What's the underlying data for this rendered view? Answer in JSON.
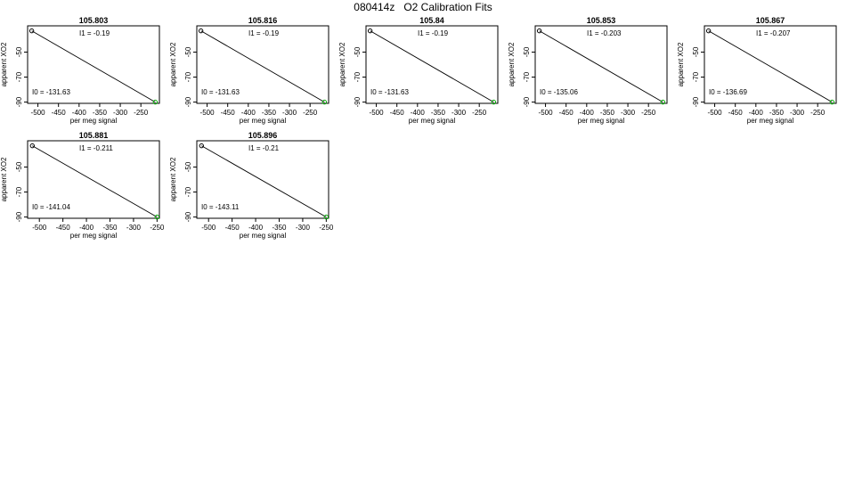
{
  "title": "080414z   O2 Calibration Fits",
  "chart_data": [
    {
      "type": "scatter",
      "title": "105.803",
      "xlabel": "per meg signal",
      "ylabel": "apparent XO2",
      "xlim": [
        -525,
        -205
      ],
      "ylim": [
        -91,
        -29
      ],
      "xticks": [
        -500,
        -450,
        -400,
        -350,
        -300,
        -250
      ],
      "yticks": [
        -50,
        -70,
        -90
      ],
      "points": [
        {
          "x": -515,
          "y": -33,
          "color": "#000000"
        },
        {
          "x": -215,
          "y": -90,
          "color": "#00aa00"
        }
      ],
      "fit_line": [
        [
          -515,
          -33
        ],
        [
          -215,
          -90
        ]
      ],
      "annotations": {
        "i1": "I1 =  -0.19",
        "i0": "I0 =  -131.63"
      }
    },
    {
      "type": "scatter",
      "title": "105.816",
      "xlabel": "per meg signal",
      "ylabel": "apparent XO2",
      "xlim": [
        -525,
        -205
      ],
      "ylim": [
        -91,
        -29
      ],
      "xticks": [
        -500,
        -450,
        -400,
        -350,
        -300,
        -250
      ],
      "yticks": [
        -50,
        -70,
        -90
      ],
      "points": [
        {
          "x": -515,
          "y": -33,
          "color": "#000000"
        },
        {
          "x": -215,
          "y": -90,
          "color": "#00aa00"
        }
      ],
      "fit_line": [
        [
          -515,
          -33
        ],
        [
          -215,
          -90
        ]
      ],
      "annotations": {
        "i1": "I1 =  -0.19",
        "i0": "I0 =  -131.63"
      }
    },
    {
      "type": "scatter",
      "title": "105.84",
      "xlabel": "per meg signal",
      "ylabel": "apparent XO2",
      "xlim": [
        -525,
        -205
      ],
      "ylim": [
        -91,
        -29
      ],
      "xticks": [
        -500,
        -450,
        -400,
        -350,
        -300,
        -250
      ],
      "yticks": [
        -50,
        -70,
        -90
      ],
      "points": [
        {
          "x": -515,
          "y": -33,
          "color": "#000000"
        },
        {
          "x": -215,
          "y": -90,
          "color": "#00aa00"
        }
      ],
      "fit_line": [
        [
          -515,
          -33
        ],
        [
          -215,
          -90
        ]
      ],
      "annotations": {
        "i1": "I1 =  -0.19",
        "i0": "I0 =  -131.63"
      }
    },
    {
      "type": "scatter",
      "title": "105.853",
      "xlabel": "per meg signal",
      "ylabel": "apparent XO2",
      "xlim": [
        -525,
        -205
      ],
      "ylim": [
        -91,
        -29
      ],
      "xticks": [
        -500,
        -450,
        -400,
        -350,
        -300,
        -250
      ],
      "yticks": [
        -50,
        -70,
        -90
      ],
      "points": [
        {
          "x": -515,
          "y": -33,
          "color": "#000000"
        },
        {
          "x": -215,
          "y": -90,
          "color": "#00aa00"
        }
      ],
      "fit_line": [
        [
          -515,
          -33
        ],
        [
          -215,
          -90
        ]
      ],
      "annotations": {
        "i1": "I1 =  -0.203",
        "i0": "I0 =  -135.06"
      }
    },
    {
      "type": "scatter",
      "title": "105.867",
      "xlabel": "per meg signal",
      "ylabel": "apparent XO2",
      "xlim": [
        -525,
        -205
      ],
      "ylim": [
        -91,
        -29
      ],
      "xticks": [
        -500,
        -450,
        -400,
        -350,
        -300,
        -250
      ],
      "yticks": [
        -50,
        -70,
        -90
      ],
      "points": [
        {
          "x": -515,
          "y": -33,
          "color": "#000000"
        },
        {
          "x": -215,
          "y": -90,
          "color": "#00aa00"
        }
      ],
      "fit_line": [
        [
          -515,
          -33
        ],
        [
          -215,
          -90
        ]
      ],
      "annotations": {
        "i1": "I1 =  -0.207",
        "i0": "I0 =  -136.69"
      }
    },
    {
      "type": "scatter",
      "title": "105.881",
      "xlabel": "per meg signal",
      "ylabel": "apparent XO2",
      "xlim": [
        -525,
        -245
      ],
      "ylim": [
        -91,
        -29
      ],
      "xticks": [
        -500,
        -450,
        -400,
        -350,
        -300,
        -250
      ],
      "yticks": [
        -50,
        -70,
        -90
      ],
      "points": [
        {
          "x": -515,
          "y": -33,
          "color": "#000000"
        },
        {
          "x": -250,
          "y": -90,
          "color": "#00aa00"
        }
      ],
      "fit_line": [
        [
          -515,
          -33
        ],
        [
          -250,
          -90
        ]
      ],
      "annotations": {
        "i1": "I1 =  -0.211",
        "i0": "I0 =  -141.04"
      }
    },
    {
      "type": "scatter",
      "title": "105.896",
      "xlabel": "per meg signal",
      "ylabel": "apparent XO2",
      "xlim": [
        -525,
        -245
      ],
      "ylim": [
        -91,
        -29
      ],
      "xticks": [
        -500,
        -450,
        -400,
        -350,
        -300,
        -250
      ],
      "yticks": [
        -50,
        -70,
        -90
      ],
      "points": [
        {
          "x": -515,
          "y": -33,
          "color": "#000000"
        },
        {
          "x": -250,
          "y": -90,
          "color": "#00aa00"
        }
      ],
      "fit_line": [
        [
          -515,
          -33
        ],
        [
          -250,
          -90
        ]
      ],
      "annotations": {
        "i1": "I1 =  -0.21",
        "i0": "I0 =  -143.11"
      }
    }
  ]
}
